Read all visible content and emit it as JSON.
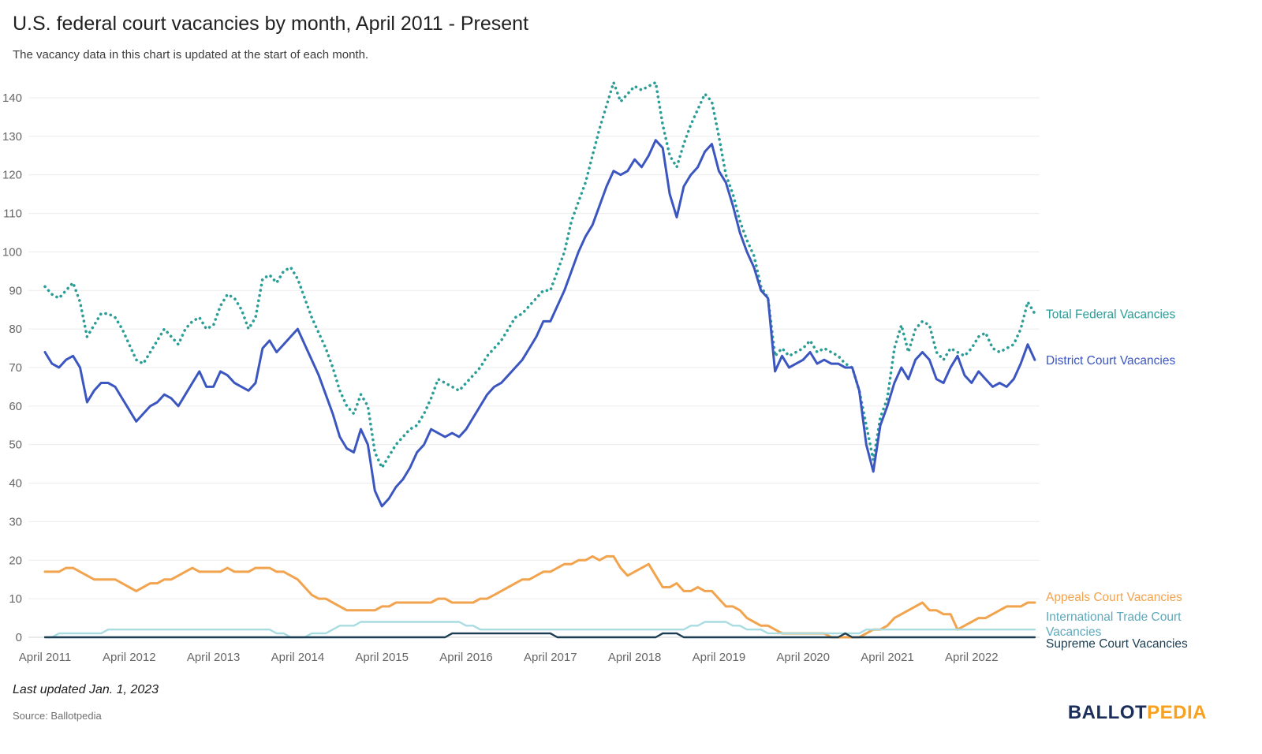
{
  "header": {
    "title": "U.S. federal court vacancies by month, April 2011 - Present",
    "subtitle": "The vacancy data in this chart is updated at the start of each month."
  },
  "footer": {
    "last_updated": "Last updated Jan. 1, 2023",
    "source": "Source: Ballotpedia",
    "logo_part1": "BALLOT",
    "logo_part2": "PEDIA",
    "logo_color1": "#1b2e5a",
    "logo_color2": "#f7a11e"
  },
  "chart_data": {
    "type": "line",
    "title": "U.S. federal court vacancies by month, April 2011 - Present",
    "subtitle": "The vacancy data in this chart is updated at the start of each month.",
    "x_start": "April 2011",
    "x_end": "January 2023",
    "frequency": "monthly",
    "x_tick_labels": [
      "April 2011",
      "April 2012",
      "April 2013",
      "April 2014",
      "April 2015",
      "April 2016",
      "April 2017",
      "April 2018",
      "April 2019",
      "April 2020",
      "April 2021",
      "April 2022"
    ],
    "y_ticks": [
      0,
      10,
      20,
      30,
      40,
      50,
      60,
      70,
      80,
      90,
      100,
      110,
      120,
      130,
      140
    ],
    "ylim": [
      0,
      145
    ],
    "grid": true,
    "legend_position": "right-of-lines",
    "series": [
      {
        "name": "Total Federal Vacancies",
        "color": "#2a9d97",
        "style": "dotted",
        "values": [
          91,
          89,
          88,
          90,
          92,
          87,
          78,
          81,
          84,
          84,
          83,
          80,
          76,
          72,
          71,
          74,
          77,
          80,
          78,
          76,
          80,
          82,
          83,
          80,
          81,
          86,
          89,
          88,
          85,
          80,
          83,
          93,
          94,
          92,
          95,
          96,
          93,
          88,
          83,
          79,
          75,
          70,
          64,
          60,
          58,
          63,
          60,
          48,
          44,
          47,
          50,
          52,
          54,
          55,
          58,
          62,
          67,
          66,
          65,
          64,
          66,
          68,
          70,
          73,
          75,
          77,
          80,
          83,
          84,
          86,
          88,
          90,
          90,
          95,
          100,
          108,
          113,
          118,
          125,
          132,
          138,
          144,
          139,
          141,
          143,
          142,
          143,
          144,
          133,
          125,
          122,
          128,
          133,
          137,
          141,
          139,
          130,
          120,
          115,
          108,
          103,
          99,
          91,
          88,
          73,
          75,
          73,
          74,
          75,
          77,
          74,
          75,
          74,
          73,
          71,
          70,
          64,
          55,
          46,
          57,
          62,
          75,
          81,
          74,
          80,
          82,
          81,
          74,
          72,
          75,
          74,
          73,
          75,
          78,
          79,
          75,
          74,
          75,
          76,
          80,
          87,
          84
        ]
      },
      {
        "name": "District Court Vacancies",
        "color": "#3c56c0",
        "style": "solid",
        "values": [
          74,
          71,
          70,
          72,
          73,
          70,
          61,
          64,
          66,
          66,
          65,
          62,
          59,
          56,
          58,
          60,
          61,
          63,
          62,
          60,
          63,
          66,
          69,
          65,
          65,
          69,
          68,
          66,
          65,
          64,
          66,
          75,
          77,
          74,
          76,
          78,
          80,
          76,
          72,
          68,
          63,
          58,
          52,
          49,
          48,
          54,
          50,
          38,
          34,
          36,
          39,
          41,
          44,
          48,
          50,
          54,
          53,
          52,
          53,
          52,
          54,
          57,
          60,
          63,
          65,
          66,
          68,
          70,
          72,
          75,
          78,
          82,
          82,
          86,
          90,
          95,
          100,
          104,
          107,
          112,
          117,
          121,
          120,
          121,
          124,
          122,
          125,
          129,
          127,
          115,
          109,
          117,
          120,
          122,
          126,
          128,
          121,
          118,
          112,
          105,
          100,
          96,
          90,
          88,
          69,
          73,
          70,
          71,
          72,
          74,
          71,
          72,
          71,
          71,
          70,
          70,
          64,
          50,
          43,
          55,
          60,
          66,
          70,
          67,
          72,
          74,
          72,
          67,
          66,
          70,
          73,
          68,
          66,
          69,
          67,
          65,
          66,
          65,
          67,
          71,
          76,
          72
        ]
      },
      {
        "name": "Appeals Court Vacancies",
        "color": "#f2a34d",
        "style": "solid",
        "values": [
          17,
          17,
          17,
          18,
          18,
          17,
          16,
          15,
          15,
          15,
          15,
          14,
          13,
          12,
          13,
          14,
          14,
          15,
          15,
          16,
          17,
          18,
          17,
          17,
          17,
          17,
          18,
          17,
          17,
          17,
          18,
          18,
          18,
          17,
          17,
          16,
          15,
          13,
          11,
          10,
          10,
          9,
          8,
          7,
          7,
          7,
          7,
          7,
          8,
          8,
          9,
          9,
          9,
          9,
          9,
          9,
          10,
          10,
          9,
          9,
          9,
          9,
          10,
          10,
          11,
          12,
          13,
          14,
          15,
          15,
          16,
          17,
          17,
          18,
          19,
          19,
          20,
          20,
          21,
          20,
          21,
          21,
          18,
          16,
          17,
          18,
          19,
          16,
          13,
          13,
          14,
          12,
          12,
          13,
          12,
          12,
          10,
          8,
          8,
          7,
          5,
          4,
          3,
          3,
          2,
          1,
          1,
          1,
          1,
          1,
          1,
          1,
          0,
          0,
          0,
          0,
          0,
          1,
          2,
          2,
          3,
          5,
          6,
          7,
          8,
          9,
          7,
          7,
          6,
          6,
          2,
          3,
          4,
          5,
          5,
          6,
          7,
          8,
          8,
          8,
          9,
          9
        ]
      },
      {
        "name": "International Trade Court Vacancies",
        "label_lines": [
          "International Trade Court",
          "Vacancies"
        ],
        "color": "#a9dce1",
        "label_color": "#5fa9bb",
        "style": "solid",
        "values": [
          0,
          0,
          1,
          1,
          1,
          1,
          1,
          1,
          1,
          2,
          2,
          2,
          2,
          2,
          2,
          2,
          2,
          2,
          2,
          2,
          2,
          2,
          2,
          2,
          2,
          2,
          2,
          2,
          2,
          2,
          2,
          2,
          2,
          1,
          1,
          0,
          0,
          0,
          1,
          1,
          1,
          2,
          3,
          3,
          3,
          4,
          4,
          4,
          4,
          4,
          4,
          4,
          4,
          4,
          4,
          4,
          4,
          4,
          4,
          4,
          3,
          3,
          2,
          2,
          2,
          2,
          2,
          2,
          2,
          2,
          2,
          2,
          2,
          2,
          2,
          2,
          2,
          2,
          2,
          2,
          2,
          2,
          2,
          2,
          2,
          2,
          2,
          2,
          2,
          2,
          2,
          2,
          3,
          3,
          4,
          4,
          4,
          4,
          3,
          3,
          2,
          2,
          2,
          1,
          1,
          1,
          1,
          1,
          1,
          1,
          1,
          1,
          1,
          1,
          1,
          1,
          1,
          2,
          2,
          2,
          2,
          2,
          2,
          2,
          2,
          2,
          2,
          2,
          2,
          2,
          2,
          2,
          2,
          2,
          2,
          2,
          2,
          2,
          2,
          2,
          2,
          2
        ]
      },
      {
        "name": "Supreme Court Vacancies",
        "color": "#1c3e52",
        "style": "solid",
        "values": [
          0,
          0,
          0,
          0,
          0,
          0,
          0,
          0,
          0,
          0,
          0,
          0,
          0,
          0,
          0,
          0,
          0,
          0,
          0,
          0,
          0,
          0,
          0,
          0,
          0,
          0,
          0,
          0,
          0,
          0,
          0,
          0,
          0,
          0,
          0,
          0,
          0,
          0,
          0,
          0,
          0,
          0,
          0,
          0,
          0,
          0,
          0,
          0,
          0,
          0,
          0,
          0,
          0,
          0,
          0,
          0,
          0,
          0,
          1,
          1,
          1,
          1,
          1,
          1,
          1,
          1,
          1,
          1,
          1,
          1,
          1,
          1,
          1,
          0,
          0,
          0,
          0,
          0,
          0,
          0,
          0,
          0,
          0,
          0,
          0,
          0,
          0,
          0,
          1,
          1,
          1,
          0,
          0,
          0,
          0,
          0,
          0,
          0,
          0,
          0,
          0,
          0,
          0,
          0,
          0,
          0,
          0,
          0,
          0,
          0,
          0,
          0,
          0,
          0,
          1,
          0,
          0,
          0,
          0,
          0,
          0,
          0,
          0,
          0,
          0,
          0,
          0,
          0,
          0,
          0,
          0,
          0,
          0,
          0,
          0,
          0,
          0,
          0,
          0,
          0,
          0,
          0
        ]
      }
    ]
  }
}
